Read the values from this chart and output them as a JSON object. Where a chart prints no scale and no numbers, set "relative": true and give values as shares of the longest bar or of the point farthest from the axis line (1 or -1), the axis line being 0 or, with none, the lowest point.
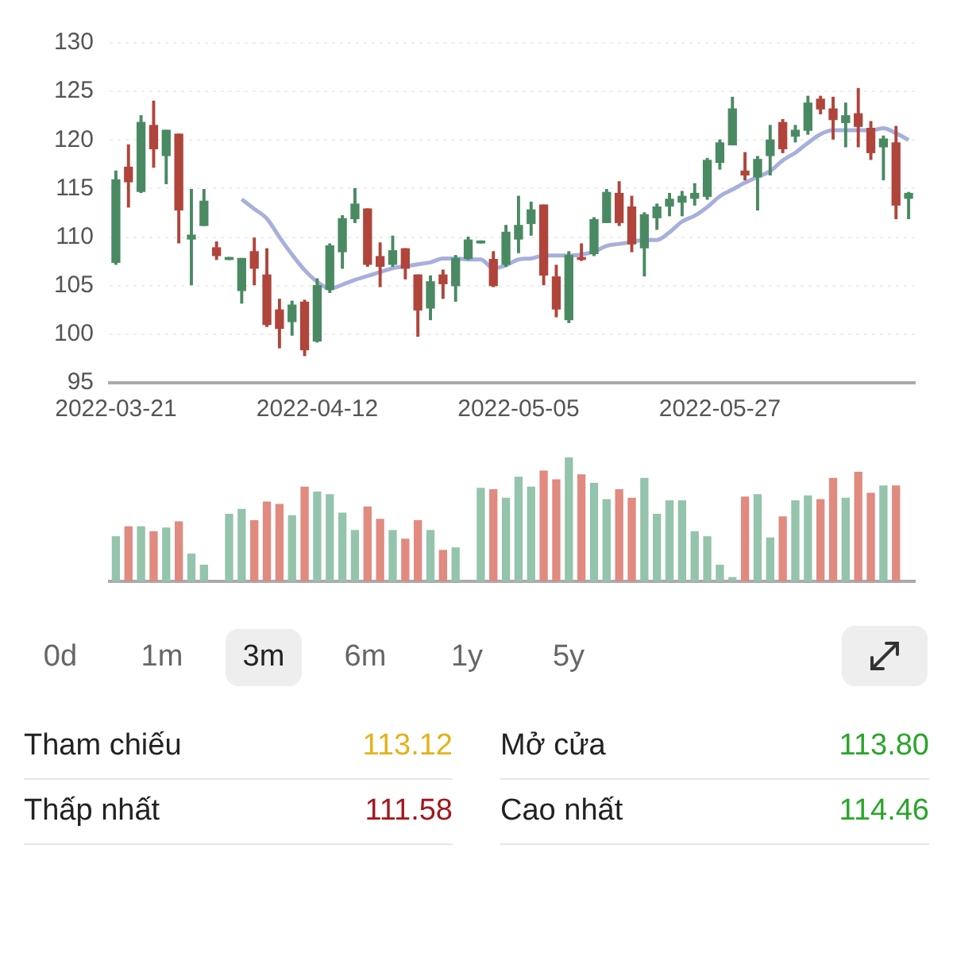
{
  "chart_data": [
    {
      "type": "candlestick",
      "categories": [
        "2022-03-21",
        null,
        null,
        null,
        null,
        null,
        null,
        null,
        null,
        null,
        null,
        null,
        null,
        null,
        null,
        null,
        "2022-04-12",
        null,
        null,
        null,
        null,
        null,
        null,
        null,
        null,
        null,
        null,
        null,
        null,
        null,
        null,
        null,
        "2022-05-05",
        null,
        null,
        null,
        null,
        null,
        null,
        null,
        null,
        null,
        null,
        null,
        null,
        null,
        null,
        null,
        "2022-05-27",
        null,
        null,
        null,
        null,
        null,
        null,
        null,
        null,
        null,
        null,
        null,
        null,
        null,
        null,
        null
      ],
      "ohlc": [
        [
          107.4,
          116.8,
          107.2,
          115.9
        ],
        [
          117.2,
          119.5,
          113.1,
          115.7
        ],
        [
          114.7,
          122.5,
          114.6,
          121.8
        ],
        [
          121.5,
          124.0,
          117.2,
          119.1
        ],
        [
          118.4,
          121.0,
          115.5,
          121.0
        ],
        [
          120.6,
          120.6,
          109.4,
          112.8
        ],
        [
          109.8,
          114.9,
          105.1,
          110.2
        ],
        [
          111.2,
          114.9,
          111.2,
          113.7
        ],
        [
          108.9,
          109.5,
          107.7,
          108.1
        ],
        [
          107.7,
          107.9,
          107.7,
          107.9
        ],
        [
          104.5,
          107.8,
          103.2,
          107.8
        ],
        [
          108.5,
          109.9,
          105.1,
          106.8
        ],
        [
          106.1,
          108.8,
          100.8,
          101.0
        ],
        [
          102.5,
          103.6,
          98.6,
          100.6
        ],
        [
          101.3,
          103.4,
          99.9,
          103.0
        ],
        [
          103.3,
          103.5,
          97.8,
          98.4
        ],
        [
          99.3,
          105.7,
          99.2,
          105.0
        ],
        [
          104.6,
          109.3,
          104.3,
          109.1
        ],
        [
          108.5,
          112.2,
          106.8,
          111.9
        ],
        [
          111.9,
          115.0,
          111.5,
          113.4
        ],
        [
          112.9,
          112.9,
          107.0,
          107.2
        ],
        [
          108.0,
          109.4,
          104.9,
          107.0
        ],
        [
          107.2,
          110.1,
          107.0,
          108.6
        ],
        [
          108.8,
          108.8,
          105.7,
          106.8
        ],
        [
          106.1,
          106.1,
          99.8,
          102.5
        ],
        [
          102.7,
          106.0,
          101.5,
          105.4
        ],
        [
          106.1,
          106.6,
          103.7,
          105.2
        ],
        [
          105.0,
          108.1,
          103.4,
          107.8
        ],
        [
          107.8,
          110.0,
          107.7,
          109.7
        ],
        [
          109.4,
          109.6,
          109.4,
          109.6
        ],
        [
          107.7,
          108.5,
          104.9,
          105.0
        ],
        [
          107.2,
          111.2,
          107.0,
          110.5
        ],
        [
          109.8,
          114.2,
          108.4,
          111.2
        ],
        [
          111.4,
          113.6,
          110.2,
          112.8
        ],
        [
          113.3,
          113.3,
          105.1,
          106.1
        ],
        [
          105.9,
          107.1,
          101.8,
          102.6
        ],
        [
          101.5,
          108.5,
          101.2,
          108.1
        ],
        [
          107.9,
          109.3,
          107.6,
          107.7
        ],
        [
          108.3,
          112.0,
          108.1,
          111.8
        ],
        [
          111.5,
          114.9,
          111.5,
          114.6
        ],
        [
          114.5,
          115.7,
          111.2,
          111.5
        ],
        [
          113.1,
          114.2,
          108.5,
          109.3
        ],
        [
          108.9,
          112.5,
          106.0,
          112.3
        ],
        [
          112.0,
          113.4,
          110.8,
          113.1
        ],
        [
          113.2,
          114.5,
          112.2,
          113.9
        ],
        [
          113.6,
          114.7,
          112.2,
          114.2
        ],
        [
          114.0,
          115.5,
          113.3,
          114.5
        ],
        [
          114.2,
          118.1,
          113.9,
          117.9
        ],
        [
          117.7,
          120.0,
          117.0,
          119.7
        ],
        [
          119.5,
          124.4,
          119.5,
          123.2
        ],
        [
          116.8,
          118.7,
          115.9,
          116.4
        ],
        [
          116.2,
          118.3,
          112.8,
          118.0
        ],
        [
          118.4,
          121.5,
          116.4,
          120.0
        ],
        [
          121.8,
          122.1,
          118.7,
          119.1
        ],
        [
          120.4,
          121.5,
          119.8,
          121.0
        ],
        [
          121.0,
          124.5,
          120.6,
          123.8
        ],
        [
          124.2,
          124.5,
          122.7,
          123.2
        ],
        [
          123.2,
          124.4,
          120.1,
          122.1
        ],
        [
          121.8,
          123.8,
          119.3,
          122.5
        ],
        [
          122.7,
          125.3,
          119.3,
          121.4
        ],
        [
          121.2,
          121.9,
          118.0,
          118.7
        ],
        [
          119.3,
          120.4,
          115.9,
          120.1
        ],
        [
          119.7,
          121.4,
          111.9,
          113.3
        ],
        [
          114.0,
          114.6,
          111.9,
          114.5
        ]
      ],
      "colors": [
        "#4a8a63",
        "#b0453b",
        "#4a8a63",
        "#b0453b",
        "#4a8a63",
        "#b0453b",
        "#4a8a63",
        "#4a8a63",
        "#b0453b",
        "#4a8a63",
        "#4a8a63",
        "#b0453b",
        "#b0453b",
        "#b0453b",
        "#4a8a63",
        "#b0453b",
        "#4a8a63",
        "#4a8a63",
        "#4a8a63",
        "#4a8a63",
        "#b0453b",
        "#b0453b",
        "#4a8a63",
        "#b0453b",
        "#b0453b",
        "#4a8a63",
        "#b0453b",
        "#4a8a63",
        "#4a8a63",
        "#4a8a63",
        "#b0453b",
        "#4a8a63",
        "#4a8a63",
        "#4a8a63",
        "#b0453b",
        "#b0453b",
        "#4a8a63",
        "#b0453b",
        "#4a8a63",
        "#4a8a63",
        "#b0453b",
        "#b0453b",
        "#4a8a63",
        "#4a8a63",
        "#4a8a63",
        "#4a8a63",
        "#4a8a63",
        "#4a8a63",
        "#4a8a63",
        "#4a8a63",
        "#b0453b",
        "#4a8a63",
        "#4a8a63",
        "#b0453b",
        "#4a8a63",
        "#4a8a63",
        "#b0453b",
        "#b0453b",
        "#4a8a63",
        "#b0453b",
        "#b0453b",
        "#4a8a63",
        "#b0453b",
        "#4a8a63"
      ],
      "series": [
        {
          "type": "line",
          "color": "#a7afdc",
          "values": [
            null,
            null,
            null,
            null,
            null,
            null,
            null,
            null,
            null,
            null,
            113.9,
            112.9,
            111.9,
            110.0,
            108.2,
            106.6,
            105.4,
            104.7,
            105.1,
            105.6,
            106.0,
            106.4,
            106.8,
            107.0,
            107.2,
            107.4,
            107.8,
            107.8,
            107.7,
            107.7,
            106.8,
            107.1,
            107.7,
            107.8,
            108.1,
            108.1,
            108.1,
            108.2,
            108.5,
            109.1,
            109.3,
            109.5,
            109.7,
            109.7,
            110.5,
            111.6,
            112.2,
            113.1,
            114.2,
            114.9,
            115.6,
            116.2,
            116.8,
            117.9,
            118.7,
            119.7,
            120.6,
            121.0,
            121.0,
            121.0,
            121.0,
            121.2,
            120.7,
            120.0
          ]
        }
      ],
      "ylim": [
        95,
        130
      ],
      "yticks": [
        95,
        100,
        105,
        110,
        115,
        120,
        125,
        130
      ],
      "grid": "y"
    },
    {
      "type": "bar",
      "relative": true,
      "categories": [
        null,
        null,
        null,
        null,
        null,
        null,
        null,
        null,
        null,
        null,
        null,
        null,
        null,
        null,
        null,
        null,
        null,
        null,
        null,
        null,
        null,
        null,
        null,
        null,
        null,
        null,
        null,
        null,
        null,
        null,
        null,
        null,
        null,
        null,
        null,
        null,
        null,
        null,
        null,
        null,
        null,
        null,
        null,
        null,
        null,
        null,
        null,
        null,
        null,
        null,
        null,
        null,
        null,
        null,
        null,
        null,
        null,
        null,
        null,
        null,
        null,
        null,
        null,
        null
      ],
      "values": [
        0.36,
        0.44,
        0.44,
        0.4,
        0.43,
        0.48,
        0.22,
        0.13,
        null,
        0.54,
        0.58,
        0.49,
        0.64,
        0.62,
        0.53,
        0.76,
        0.72,
        0.7,
        0.55,
        0.41,
        0.6,
        0.5,
        0.41,
        0.34,
        0.49,
        0.41,
        0.25,
        0.27,
        null,
        0.75,
        0.74,
        0.67,
        0.84,
        0.76,
        0.89,
        0.82,
        1,
        0.86,
        0.79,
        0.66,
        0.74,
        0.67,
        0.83,
        0.54,
        0.65,
        0.65,
        0.4,
        0.36,
        0.13,
        0.03,
        0.68,
        0.7,
        0.35,
        0.52,
        0.65,
        0.69,
        0.66,
        0.83,
        0.67,
        0.88,
        0.71,
        0.77,
        0.77,
        null
      ],
      "colors": [
        "#94c4ab",
        "#e08a80",
        "#94c4ab",
        "#e08a80",
        "#94c4ab",
        "#e08a80",
        "#94c4ab",
        "#94c4ab",
        "#e08a80",
        "#94c4ab",
        "#94c4ab",
        "#e08a80",
        "#e08a80",
        "#e08a80",
        "#94c4ab",
        "#e08a80",
        "#94c4ab",
        "#94c4ab",
        "#94c4ab",
        "#94c4ab",
        "#e08a80",
        "#e08a80",
        "#94c4ab",
        "#e08a80",
        "#e08a80",
        "#94c4ab",
        "#e08a80",
        "#94c4ab",
        "#94c4ab",
        "#94c4ab",
        "#e08a80",
        "#94c4ab",
        "#94c4ab",
        "#94c4ab",
        "#e08a80",
        "#e08a80",
        "#94c4ab",
        "#e08a80",
        "#94c4ab",
        "#94c4ab",
        "#e08a80",
        "#e08a80",
        "#94c4ab",
        "#94c4ab",
        "#94c4ab",
        "#94c4ab",
        "#94c4ab",
        "#94c4ab",
        "#94c4ab",
        "#94c4ab",
        "#e08a80",
        "#94c4ab",
        "#94c4ab",
        "#e08a80",
        "#94c4ab",
        "#94c4ab",
        "#e08a80",
        "#e08a80",
        "#94c4ab",
        "#e08a80",
        "#e08a80",
        "#94c4ab",
        "#e08a80",
        "#94c4ab"
      ]
    },
    {
      "type": "other",
      "annotations": [
        "0d",
        "1m",
        "3m",
        "6m",
        "1y",
        "5y",
        "Tham chiếu",
        "113.12",
        "Mở cửa",
        "113.80",
        "Thấp nhất",
        "111.58",
        "Cao nhất",
        "114.46"
      ]
    }
  ]
}
